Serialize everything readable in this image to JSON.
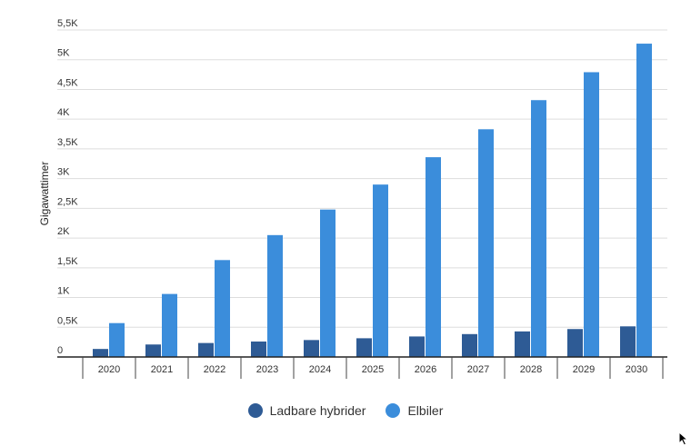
{
  "chart_data": {
    "type": "bar",
    "categories": [
      "2020",
      "2021",
      "2022",
      "2023",
      "2024",
      "2025",
      "2026",
      "2027",
      "2028",
      "2029",
      "2030"
    ],
    "series": [
      {
        "name": "Ladbare hybrider",
        "color": "#2e5b95",
        "values": [
          135,
          210,
          235,
          260,
          285,
          315,
          345,
          385,
          430,
          470,
          515
        ]
      },
      {
        "name": "Elbiler",
        "color": "#3b8ddb",
        "values": [
          570,
          1060,
          1630,
          2050,
          2480,
          2900,
          3360,
          3830,
          4320,
          4790,
          5270
        ]
      }
    ],
    "ylabel": "Gigawattimer",
    "xlabel": "",
    "ylim": [
      0,
      5500
    ],
    "yticks": [
      0,
      500,
      1000,
      1500,
      2000,
      2500,
      3000,
      3500,
      4000,
      4500,
      5000,
      5500
    ],
    "ytick_labels": [
      "0",
      "0,5K",
      "1K",
      "1,5K",
      "2K",
      "2,5K",
      "3K",
      "3,5K",
      "4K",
      "4,5K",
      "5K",
      "5,5K"
    ],
    "grid": true,
    "legend_position": "bottom"
  }
}
